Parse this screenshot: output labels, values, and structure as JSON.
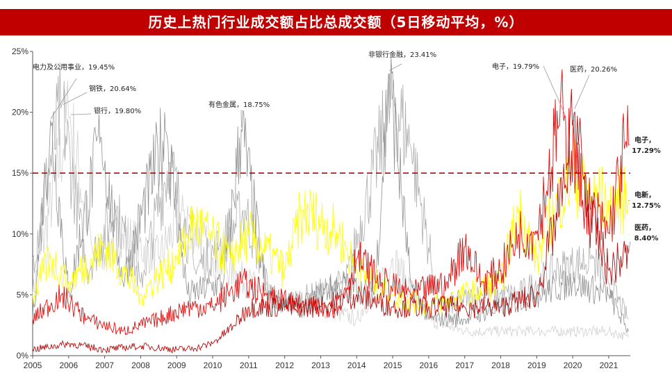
{
  "header": {
    "title": "历史上热门行业成交额占比总成交额（5日移动平均，%）"
  },
  "chart_data": {
    "type": "line",
    "title": "历史上热门行业成交额占比总成交额（5日移动平均，%）",
    "x_ticks": [
      "2005",
      "2006",
      "2007",
      "2008",
      "2009",
      "2010",
      "2011",
      "2012",
      "2013",
      "2014",
      "2015",
      "2016",
      "2017",
      "2018",
      "2019",
      "2020",
      "2021"
    ],
    "y_ticks": [
      "0%",
      "5%",
      "10%",
      "15%",
      "20%",
      "25%"
    ],
    "ylim": [
      0,
      25
    ],
    "xlim": [
      2005.0,
      2021.6
    ],
    "reference_line": {
      "value": 15,
      "style": "dashed",
      "color": "#c00000"
    },
    "colors": {
      "grey_dark": "#8a8a8a",
      "grey_mid": "#a9a9a9",
      "grey_light": "#cfcfcf",
      "yellow": "#ffff00",
      "red": "#e00000",
      "dark_red": "#b00000"
    },
    "series": [
      {
        "color": "grey_dark",
        "points": [
          [
            2005,
            3.0
          ],
          [
            2005.5,
            19.45
          ],
          [
            2006,
            5
          ],
          [
            2006.9,
            18.1
          ],
          [
            2007.5,
            6
          ],
          [
            2008.7,
            18.6
          ],
          [
            2009.3,
            5
          ],
          [
            2010.3,
            6
          ],
          [
            2010.8,
            18.75
          ],
          [
            2011.5,
            5
          ],
          [
            2012.5,
            4
          ],
          [
            2013.5,
            6
          ],
          [
            2014.5,
            5
          ],
          [
            2014.9,
            23.41
          ],
          [
            2015.5,
            6
          ],
          [
            2016,
            3
          ],
          [
            2017,
            3
          ],
          [
            2018,
            4
          ],
          [
            2019,
            5
          ],
          [
            2020,
            6
          ],
          [
            2021,
            5
          ],
          [
            2021.55,
            2
          ]
        ]
      },
      {
        "color": "grey_mid",
        "points": [
          [
            2005,
            8
          ],
          [
            2005.8,
            20.64
          ],
          [
            2006.5,
            7
          ],
          [
            2007.3,
            12
          ],
          [
            2008,
            6
          ],
          [
            2008.8,
            16
          ],
          [
            2009.5,
            7
          ],
          [
            2010.2,
            9
          ],
          [
            2010.9,
            12
          ],
          [
            2011.7,
            4
          ],
          [
            2012.8,
            5
          ],
          [
            2013.7,
            6
          ],
          [
            2015,
            21.3
          ],
          [
            2015.5,
            17.2
          ],
          [
            2016.3,
            4
          ],
          [
            2017.5,
            5
          ],
          [
            2018.5,
            5
          ],
          [
            2019.5,
            7
          ],
          [
            2020.5,
            8
          ],
          [
            2021,
            6
          ],
          [
            2021.55,
            3
          ]
        ]
      },
      {
        "color": "grey_light",
        "points": [
          [
            2005,
            5
          ],
          [
            2006,
            19.8
          ],
          [
            2006.7,
            8
          ],
          [
            2007.5,
            10
          ],
          [
            2008.5,
            8
          ],
          [
            2009.2,
            12
          ],
          [
            2010,
            8
          ],
          [
            2011,
            6
          ],
          [
            2012,
            4
          ],
          [
            2013,
            4
          ],
          [
            2014,
            3
          ],
          [
            2015,
            8
          ],
          [
            2016,
            3
          ],
          [
            2017,
            2
          ],
          [
            2018,
            2
          ],
          [
            2019,
            2
          ],
          [
            2020,
            2
          ],
          [
            2021,
            2
          ],
          [
            2021.55,
            1.5
          ]
        ]
      },
      {
        "color": "yellow",
        "points": [
          [
            2005,
            5
          ],
          [
            2005.5,
            8
          ],
          [
            2006,
            6
          ],
          [
            2007,
            9
          ],
          [
            2008,
            5
          ],
          [
            2009,
            8
          ],
          [
            2009.5,
            11
          ],
          [
            2010.5,
            8
          ],
          [
            2011,
            10
          ],
          [
            2012,
            7
          ],
          [
            2012.5,
            12
          ],
          [
            2013,
            11
          ],
          [
            2013.5,
            10
          ],
          [
            2014,
            7
          ],
          [
            2015,
            5
          ],
          [
            2016,
            4
          ],
          [
            2017,
            5
          ],
          [
            2018,
            6
          ],
          [
            2018.5,
            12
          ],
          [
            2019,
            8
          ],
          [
            2019.5,
            12
          ],
          [
            2020,
            15
          ],
          [
            2020.5,
            13
          ],
          [
            2021,
            12.75
          ],
          [
            2021.55,
            12.75
          ]
        ]
      },
      {
        "color": "red",
        "points": [
          [
            2005,
            3
          ],
          [
            2005.8,
            5
          ],
          [
            2006.5,
            3
          ],
          [
            2007.5,
            2
          ],
          [
            2008.5,
            3
          ],
          [
            2009.3,
            4
          ],
          [
            2010,
            4
          ],
          [
            2010.8,
            6
          ],
          [
            2011.5,
            5
          ],
          [
            2012.5,
            4
          ],
          [
            2013.5,
            4
          ],
          [
            2014,
            8
          ],
          [
            2014.7,
            6
          ],
          [
            2015.5,
            5
          ],
          [
            2016.5,
            6
          ],
          [
            2017,
            9
          ],
          [
            2017.5,
            6
          ],
          [
            2018,
            7
          ],
          [
            2018.5,
            10
          ],
          [
            2019,
            10
          ],
          [
            2019.6,
            18.8
          ],
          [
            2019.79,
            19.79
          ],
          [
            2020.1,
            15
          ],
          [
            2020.5,
            12
          ],
          [
            2021,
            10
          ],
          [
            2021.45,
            17.29
          ],
          [
            2021.55,
            17.29
          ]
        ]
      },
      {
        "color": "dark_red",
        "points": [
          [
            2005,
            0.5
          ],
          [
            2006,
            1
          ],
          [
            2007,
            0.5
          ],
          [
            2008,
            0.8
          ],
          [
            2009,
            0.5
          ],
          [
            2009.5,
            0.6
          ],
          [
            2010,
            1
          ],
          [
            2010.6,
            2.5
          ],
          [
            2011,
            4
          ],
          [
            2012,
            4
          ],
          [
            2013,
            4
          ],
          [
            2014,
            5
          ],
          [
            2015,
            4
          ],
          [
            2016,
            4
          ],
          [
            2017,
            4
          ],
          [
            2018,
            4
          ],
          [
            2019,
            5
          ],
          [
            2019.8,
            14
          ],
          [
            2020.05,
            20.26
          ],
          [
            2020.4,
            12
          ],
          [
            2021,
            7
          ],
          [
            2021.55,
            8.4
          ]
        ]
      }
    ],
    "annotations": [
      {
        "text": "电力及公用事业，19.45%",
        "x": 2005.5,
        "y": 19.45
      },
      {
        "text": "钢铁，20.64%",
        "x": 2005.85,
        "y": 20.64
      },
      {
        "text": "银行，19.80%",
        "x": 2006.05,
        "y": 19.8
      },
      {
        "text": "有色金属，18.75%",
        "x": 2010.8,
        "y": 18.75
      },
      {
        "text": "非银行金融，23.41%",
        "x": 2014.9,
        "y": 23.41
      },
      {
        "text": "电子，19.79%",
        "x": 2019.79,
        "y": 19.79
      },
      {
        "text": "医药，20.26%",
        "x": 2020.05,
        "y": 20.26
      },
      {
        "text": "电子，17.29%",
        "x": 2021.55,
        "y": 17.29
      },
      {
        "text": "电新，12.75%",
        "x": 2021.55,
        "y": 12.75
      },
      {
        "text": "医药，8.40%",
        "x": 2021.55,
        "y": 8.4
      }
    ]
  }
}
